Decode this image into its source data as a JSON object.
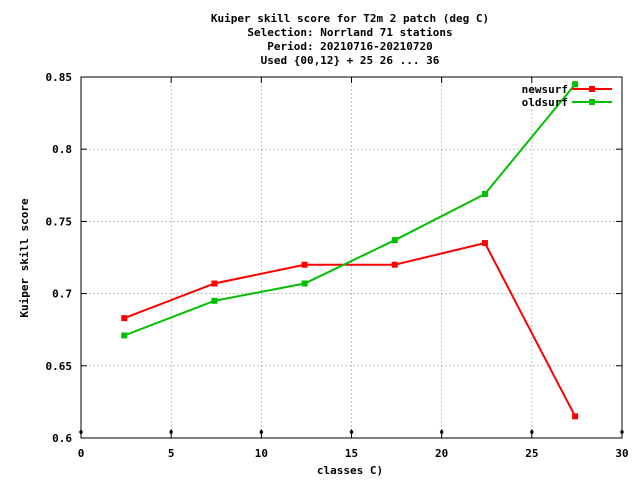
{
  "chart_data": {
    "type": "line",
    "title_lines": [
      "Kuiper skill score  for T2m 2 patch (deg C)",
      "Selection: Norrland     71 stations",
      "Period: 20210716-20210720",
      "Used {00,12} + 25 26 ... 36"
    ],
    "xlabel": "classes C)",
    "ylabel": "Kuiper skill score",
    "xlim": [
      0,
      30
    ],
    "ylim": [
      0.6,
      0.85
    ],
    "x_ticks": [
      0,
      5,
      10,
      15,
      20,
      25,
      30
    ],
    "y_ticks": [
      0.6,
      0.65,
      0.7,
      0.75,
      0.8,
      0.85
    ],
    "x_tick_labels": [
      "0",
      "5",
      "10",
      "15",
      "20",
      "25",
      "30"
    ],
    "y_tick_labels": [
      "0.6",
      "0.65",
      "0.7",
      "0.75",
      "0.8",
      "0.85"
    ],
    "grid": true,
    "legend_position": "top-right",
    "series": [
      {
        "name": "newsurf",
        "color": "#ff0000",
        "x": [
          2.4,
          7.4,
          12.4,
          17.4,
          22.4,
          27.4
        ],
        "y": [
          0.683,
          0.707,
          0.72,
          0.72,
          0.735,
          0.615
        ]
      },
      {
        "name": "oldsurf",
        "color": "#00c000",
        "x": [
          2.4,
          7.4,
          12.4,
          17.4,
          22.4,
          27.4
        ],
        "y": [
          0.671,
          0.695,
          0.707,
          0.737,
          0.769,
          0.845
        ]
      }
    ]
  }
}
